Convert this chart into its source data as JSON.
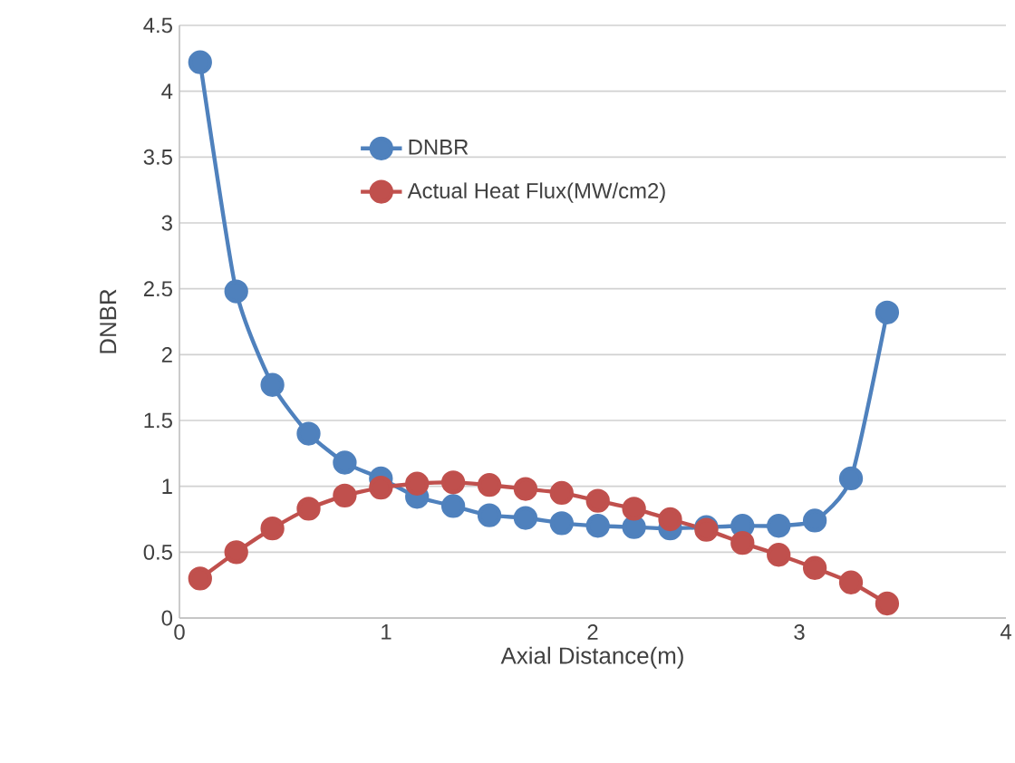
{
  "chart_data": {
    "type": "line",
    "xlabel": "Axial Distance(m)",
    "ylabel": "DNBR",
    "x": [
      0.1,
      0.275,
      0.45,
      0.625,
      0.8,
      0.975,
      1.15,
      1.325,
      1.5,
      1.675,
      1.85,
      2.025,
      2.2,
      2.375,
      2.55,
      2.725,
      2.9,
      3.075,
      3.25,
      3.425
    ],
    "series": [
      {
        "name": "DNBR",
        "color": "#4f81bd",
        "values": [
          4.22,
          2.48,
          1.77,
          1.4,
          1.18,
          1.06,
          0.92,
          0.85,
          0.78,
          0.76,
          0.72,
          0.7,
          0.69,
          0.68,
          0.69,
          0.7,
          0.7,
          0.74,
          1.06,
          2.32
        ]
      },
      {
        "name": "Actual Heat Flux(MW/cm2)",
        "color": "#c0504d",
        "values": [
          0.3,
          0.5,
          0.68,
          0.83,
          0.93,
          0.99,
          1.02,
          1.03,
          1.01,
          0.98,
          0.95,
          0.89,
          0.83,
          0.75,
          0.67,
          0.57,
          0.48,
          0.38,
          0.27,
          0.11
        ]
      }
    ],
    "xlim": [
      0,
      4
    ],
    "xticks": [
      0,
      1,
      2,
      3,
      4
    ],
    "ylim": [
      0,
      4.5
    ],
    "yticks": [
      0,
      0.5,
      1,
      1.5,
      2,
      2.5,
      3,
      3.5,
      4,
      4.5
    ],
    "grid": "y",
    "legend": "top",
    "marker": "circle",
    "line_style": "solid"
  }
}
